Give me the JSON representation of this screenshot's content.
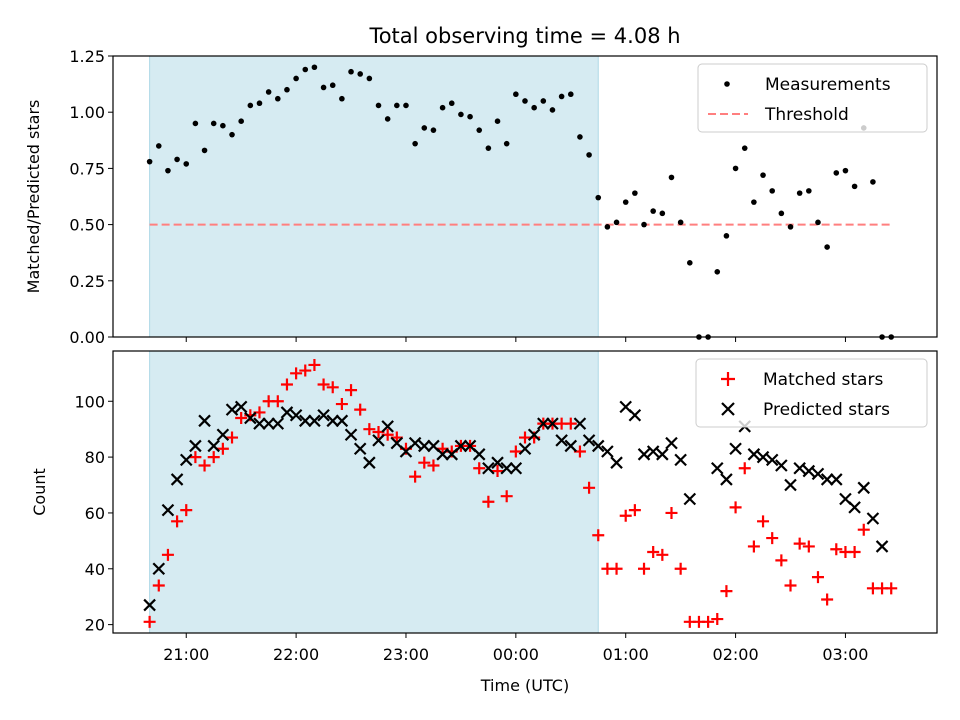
{
  "figure": {
    "title": "Total observing time = 4.08 h",
    "xlabel": "Time (UTC)",
    "x_tick_labels": [
      "21:00",
      "22:00",
      "23:00",
      "00:00",
      "01:00",
      "02:00",
      "03:00"
    ]
  },
  "colors": {
    "shade": "#add8e6",
    "measurement": "#000000",
    "threshold": "#ff7f7f",
    "matched": "#ff0000",
    "predicted": "#000000"
  },
  "chart_data": [
    {
      "type": "scatter",
      "ylabel": "Matched/Predicted stars",
      "ylim": [
        0.0,
        1.25
      ],
      "yticks": [
        "0.00",
        "0.25",
        "0.50",
        "0.75",
        "1.00",
        "1.25"
      ],
      "xlim": [
        "20:20",
        "03:50"
      ],
      "shaded_interval": [
        "20:40",
        "00:45"
      ],
      "legend": {
        "placement": "upper right",
        "entries": [
          "Measurements",
          "Threshold"
        ]
      },
      "threshold": {
        "name": "Threshold",
        "value": 0.5,
        "x": [
          "20:40",
          "03:25"
        ]
      },
      "series": [
        {
          "name": "Measurements",
          "x": [
            "20:40",
            "20:45",
            "20:50",
            "20:55",
            "21:00",
            "21:05",
            "21:10",
            "21:15",
            "21:20",
            "21:25",
            "21:30",
            "21:35",
            "21:40",
            "21:45",
            "21:50",
            "21:55",
            "22:00",
            "22:05",
            "22:10",
            "22:15",
            "22:20",
            "22:25",
            "22:30",
            "22:35",
            "22:40",
            "22:45",
            "22:50",
            "22:55",
            "23:00",
            "23:05",
            "23:10",
            "23:15",
            "23:20",
            "23:25",
            "23:30",
            "23:35",
            "23:40",
            "23:45",
            "23:50",
            "23:55",
            "00:00",
            "00:05",
            "00:10",
            "00:15",
            "00:20",
            "00:25",
            "00:30",
            "00:35",
            "00:40",
            "00:45",
            "00:50",
            "00:55",
            "01:00",
            "01:05",
            "01:10",
            "01:15",
            "01:20",
            "01:25",
            "01:30",
            "01:35",
            "01:40",
            "01:45",
            "01:50",
            "01:55",
            "02:00",
            "02:05",
            "02:10",
            "02:15",
            "02:20",
            "02:25",
            "02:30",
            "02:35",
            "02:40",
            "02:45",
            "02:50",
            "02:55",
            "03:00",
            "03:05",
            "03:10",
            "03:15",
            "03:20",
            "03:25"
          ],
          "y": [
            0.78,
            0.85,
            0.74,
            0.79,
            0.77,
            0.95,
            0.83,
            0.95,
            0.94,
            0.9,
            0.96,
            1.03,
            1.04,
            1.09,
            1.06,
            1.1,
            1.15,
            1.19,
            1.2,
            1.11,
            1.12,
            1.06,
            1.18,
            1.17,
            1.15,
            1.03,
            0.97,
            1.03,
            1.03,
            0.86,
            0.93,
            0.92,
            1.02,
            1.04,
            0.99,
            0.98,
            0.92,
            0.84,
            0.96,
            0.86,
            1.08,
            1.05,
            1.02,
            1.05,
            1.01,
            1.07,
            1.08,
            0.89,
            0.81,
            0.62,
            0.49,
            0.51,
            0.6,
            0.64,
            0.5,
            0.56,
            0.55,
            0.71,
            0.51,
            0.33,
            0.0,
            0.0,
            0.29,
            0.45,
            0.75,
            0.84,
            0.6,
            0.72,
            0.65,
            0.55,
            0.49,
            0.64,
            0.65,
            0.51,
            0.4,
            0.73,
            0.74,
            0.67,
            0.93,
            0.69,
            0.0,
            0.0
          ]
        }
      ]
    },
    {
      "type": "scatter",
      "ylabel": "Count",
      "ylim": [
        17,
        118
      ],
      "yticks": [
        "20",
        "40",
        "60",
        "80",
        "100"
      ],
      "xlim": [
        "20:20",
        "03:50"
      ],
      "shaded_interval": [
        "20:40",
        "00:45"
      ],
      "legend": {
        "placement": "upper right",
        "entries": [
          "Matched stars",
          "Predicted stars"
        ]
      },
      "series": [
        {
          "name": "Matched stars",
          "marker": "+",
          "x": [
            "20:40",
            "20:45",
            "20:50",
            "20:55",
            "21:00",
            "21:05",
            "21:10",
            "21:15",
            "21:20",
            "21:25",
            "21:30",
            "21:35",
            "21:40",
            "21:45",
            "21:50",
            "21:55",
            "22:00",
            "22:05",
            "22:10",
            "22:15",
            "22:20",
            "22:25",
            "22:30",
            "22:35",
            "22:40",
            "22:45",
            "22:50",
            "22:55",
            "23:00",
            "23:05",
            "23:10",
            "23:15",
            "23:20",
            "23:25",
            "23:30",
            "23:35",
            "23:40",
            "23:45",
            "23:50",
            "23:55",
            "00:00",
            "00:05",
            "00:10",
            "00:15",
            "00:20",
            "00:25",
            "00:30",
            "00:35",
            "00:40",
            "00:45",
            "00:50",
            "00:55",
            "01:00",
            "01:05",
            "01:10",
            "01:15",
            "01:20",
            "01:25",
            "01:30",
            "01:35",
            "01:40",
            "01:45",
            "01:50",
            "01:55",
            "02:00",
            "02:05",
            "02:10",
            "02:15",
            "02:20",
            "02:25",
            "02:30",
            "02:35",
            "02:40",
            "02:45",
            "02:50",
            "02:55",
            "03:00",
            "03:05",
            "03:10",
            "03:15",
            "03:20",
            "03:25"
          ],
          "y": [
            21,
            34,
            45,
            57,
            61,
            80,
            77,
            80,
            83,
            87,
            94,
            95,
            96,
            100,
            100,
            106,
            110,
            111,
            113,
            106,
            105,
            99,
            104,
            97,
            90,
            89,
            88,
            87,
            83,
            73,
            78,
            77,
            83,
            82,
            84,
            84,
            76,
            64,
            75,
            66,
            82,
            87,
            87,
            92,
            92,
            92,
            92,
            82,
            69,
            52,
            40,
            40,
            59,
            61,
            40,
            46,
            45,
            60,
            40,
            21,
            21,
            21,
            22,
            32,
            62,
            76,
            48,
            57,
            51,
            43,
            34,
            49,
            48,
            37,
            29,
            47,
            46,
            46,
            54,
            33,
            33,
            33
          ]
        },
        {
          "name": "Predicted stars",
          "marker": "x",
          "x": [
            "20:40",
            "20:45",
            "20:50",
            "20:55",
            "21:00",
            "21:05",
            "21:10",
            "21:15",
            "21:20",
            "21:25",
            "21:30",
            "21:35",
            "21:40",
            "21:45",
            "21:50",
            "21:55",
            "22:00",
            "22:05",
            "22:10",
            "22:15",
            "22:20",
            "22:25",
            "22:30",
            "22:35",
            "22:40",
            "22:45",
            "22:50",
            "22:55",
            "23:00",
            "23:05",
            "23:10",
            "23:15",
            "23:20",
            "23:25",
            "23:30",
            "23:35",
            "23:40",
            "23:45",
            "23:50",
            "23:55",
            "00:00",
            "00:05",
            "00:10",
            "00:15",
            "00:20",
            "00:25",
            "00:30",
            "00:35",
            "00:40",
            "00:45",
            "00:50",
            "00:55",
            "01:00",
            "01:05",
            "01:10",
            "01:15",
            "01:20",
            "01:25",
            "01:30",
            "01:35",
            "01:40",
            "01:45",
            "01:50",
            "01:55",
            "02:00",
            "02:05",
            "02:10",
            "02:15",
            "02:20",
            "02:25",
            "02:30",
            "02:35",
            "02:40",
            "02:45",
            "02:50",
            "02:55",
            "03:00",
            "03:05",
            "03:10",
            "03:15",
            "03:20"
          ],
          "y": [
            27,
            40,
            61,
            72,
            79,
            84,
            93,
            84,
            88,
            97,
            98,
            94,
            92,
            92,
            92,
            96,
            95,
            93,
            93,
            95,
            93,
            93,
            88,
            83,
            78,
            86,
            91,
            85,
            82,
            85,
            84,
            84,
            81,
            81,
            84,
            84,
            81,
            76,
            78,
            76,
            76,
            83,
            88,
            92,
            92,
            86,
            84,
            92,
            86,
            84,
            82,
            78,
            98,
            95,
            81,
            82,
            81,
            85,
            79,
            65,
            null,
            null,
            76,
            72,
            83,
            91,
            81,
            80,
            79,
            77,
            70,
            76,
            75,
            74,
            72,
            72,
            65,
            62,
            69,
            58,
            48
          ]
        }
      ]
    }
  ]
}
